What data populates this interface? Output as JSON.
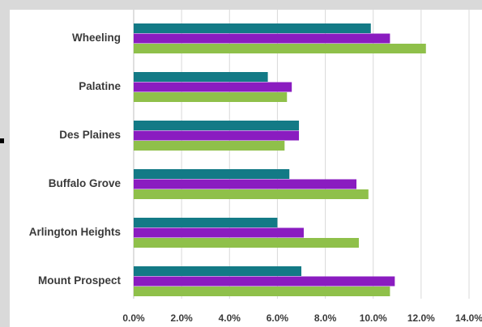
{
  "chart_data": {
    "type": "bar",
    "orientation": "horizontal",
    "categories": [
      "Wheeling",
      "Palatine",
      "Des Plaines",
      "Buffalo Grove",
      "Arlington Heights",
      "Mount Prospect"
    ],
    "series": [
      {
        "values": [
          9.9,
          5.6,
          6.9,
          6.5,
          6.0,
          7.0
        ],
        "color": "#137a86"
      },
      {
        "values": [
          10.7,
          6.6,
          6.9,
          9.3,
          7.1,
          10.9
        ],
        "color": "#8a1cc0"
      },
      {
        "values": [
          12.2,
          6.4,
          6.3,
          9.8,
          9.4,
          10.7
        ],
        "color": "#8fc04a"
      }
    ],
    "x_ticks": [
      "0.0%",
      "2.0%",
      "4.0%",
      "6.0%",
      "8.0%",
      "10.0%",
      "12.0%",
      "14.0%"
    ],
    "xlim": [
      0,
      14
    ],
    "grid": true,
    "legend": "none",
    "title": "",
    "xlabel": "",
    "ylabel": ""
  }
}
